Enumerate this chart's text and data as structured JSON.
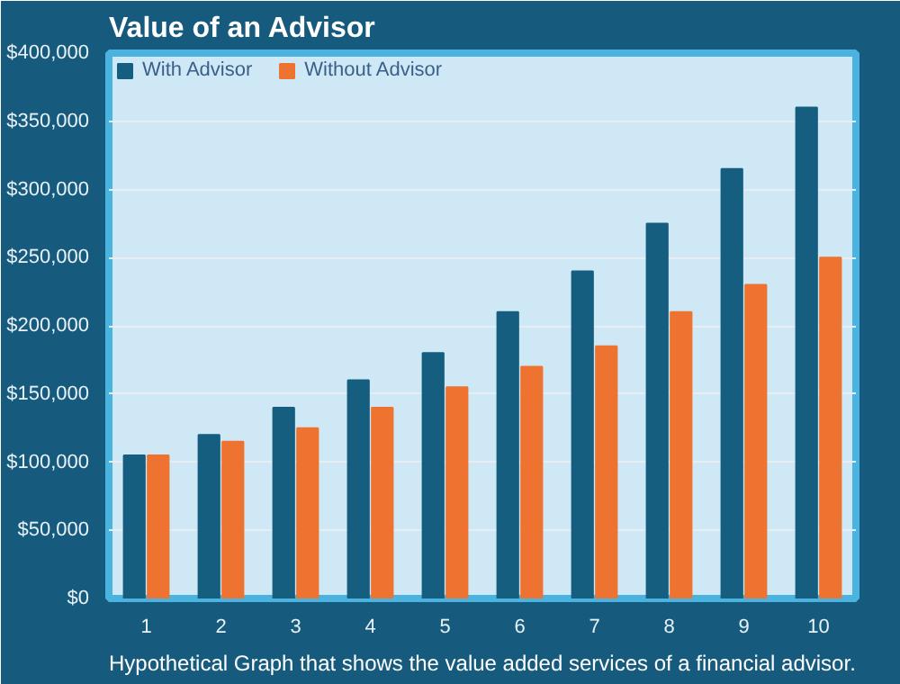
{
  "chart_data": {
    "type": "bar",
    "title": "Value of an Advisor",
    "categories": [
      "1",
      "2",
      "3",
      "4",
      "5",
      "6",
      "7",
      "8",
      "9",
      "10"
    ],
    "series": [
      {
        "name": "With Advisor",
        "color": "#155e80",
        "values": [
          105000,
          120000,
          140000,
          160000,
          180000,
          210000,
          240000,
          275000,
          315000,
          360000
        ]
      },
      {
        "name": "Without Advisor",
        "color": "#ee7330",
        "values": [
          105000,
          115000,
          125000,
          140000,
          155000,
          170000,
          185000,
          210000,
          230000,
          250000
        ]
      }
    ],
    "ylim": [
      0,
      400000
    ],
    "yticks": [
      {
        "value": 0,
        "label": "$0"
      },
      {
        "value": 50000,
        "label": "$50,000"
      },
      {
        "value": 100000,
        "label": "$100,000"
      },
      {
        "value": 150000,
        "label": "$150,000"
      },
      {
        "value": 200000,
        "label": "$200,000"
      },
      {
        "value": 250000,
        "label": "$250,000"
      },
      {
        "value": 300000,
        "label": "$300,000"
      },
      {
        "value": 350000,
        "label": "$350,000"
      },
      {
        "value": 400000,
        "label": "$400,000"
      }
    ],
    "grid": "y",
    "legend": "top left",
    "annotations": [
      "Hypothetical Graph that shows the value added services of a financial advisor."
    ]
  }
}
